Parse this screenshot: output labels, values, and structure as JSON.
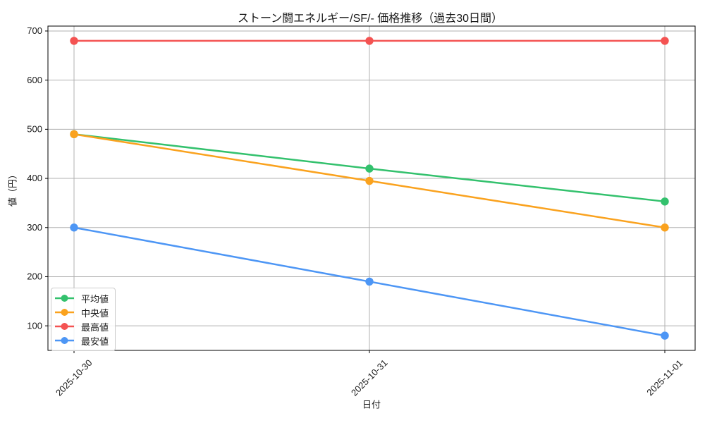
{
  "chart_data": {
    "type": "line",
    "title": "ストーン闘エネルギー/SF/- 価格推移（過去30日間）",
    "xlabel": "日付",
    "ylabel": "値（円）",
    "categories": [
      "2025-10-30",
      "2025-10-31",
      "2025-11-01"
    ],
    "yticks": [
      100,
      200,
      300,
      400,
      500,
      600,
      700
    ],
    "ylim": [
      50,
      710
    ],
    "grid": true,
    "legend_position": "lower left",
    "series": [
      {
        "name": "平均値",
        "color": "#33C16D",
        "values": [
          490,
          420,
          353
        ]
      },
      {
        "name": "中央値",
        "color": "#FAA21E",
        "values": [
          490,
          395,
          300
        ]
      },
      {
        "name": "最高値",
        "color": "#F45352",
        "values": [
          680,
          680,
          680
        ]
      },
      {
        "name": "最安値",
        "color": "#4D96F5",
        "values": [
          300,
          190,
          80
        ]
      }
    ]
  }
}
